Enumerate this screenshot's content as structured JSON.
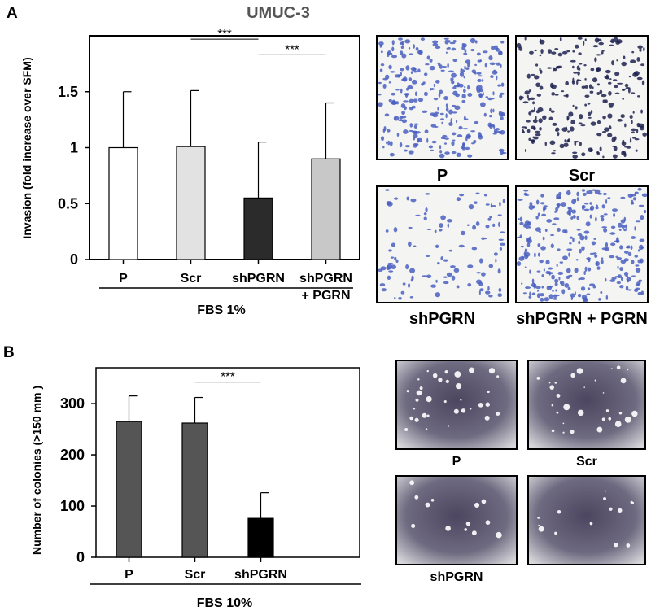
{
  "figure": {
    "title": "UMUC-3",
    "panel_a_letter": "A",
    "panel_b_letter": "B"
  },
  "chart_data": [
    {
      "type": "bar",
      "panel": "A",
      "ylabel": "Invasion (fold increase over SFM)",
      "xlabel": "FBS 1%",
      "categories": [
        "P",
        "Scr",
        "shPGRN",
        "shPGRN\n+ PGRN"
      ],
      "values": [
        1.0,
        1.01,
        0.55,
        0.9
      ],
      "errors": [
        0.5,
        0.5,
        0.5,
        0.5
      ],
      "bar_colors": [
        "#ffffff",
        "#e2e2e2",
        "#2b2b2b",
        "#c8c8c8"
      ],
      "yticks": [
        0,
        0.5,
        1,
        1.5
      ],
      "ytick_labels": [
        "0",
        "0.5",
        "1",
        "1.5"
      ],
      "ylim": [
        0,
        2.0
      ],
      "significance": [
        {
          "from": 1,
          "to": 2,
          "label": "***",
          "y": 1.97
        },
        {
          "from": 2,
          "to": 3,
          "label": "***",
          "y": 1.83
        }
      ]
    },
    {
      "type": "bar",
      "panel": "B",
      "ylabel": "Number of colonies (>150 mm )",
      "xlabel": "FBS 10%",
      "categories": [
        "P",
        "Scr",
        "shPGRN"
      ],
      "values": [
        265,
        262,
        76
      ],
      "errors": [
        50,
        50,
        50
      ],
      "bar_colors": [
        "#555555",
        "#555555",
        "#000000"
      ],
      "yticks": [
        0,
        100,
        200,
        300
      ],
      "ytick_labels": [
        "0",
        "100",
        "200",
        "300"
      ],
      "ylim": [
        0,
        370
      ],
      "xslots": 4,
      "significance": [
        {
          "from": 1,
          "to": 2,
          "label": "***",
          "y": 342
        }
      ]
    }
  ],
  "micrographs": {
    "invasion": {
      "labels": [
        "P",
        "Scr",
        "shPGRN",
        "shPGRN + PGRN"
      ],
      "densities": [
        0.55,
        0.45,
        0.22,
        0.55
      ],
      "colors": [
        "#4a5fc1",
        "#1e2250",
        "#4a5fc1",
        "#4a5fc1"
      ]
    },
    "colonies": {
      "labels": [
        "P",
        "Scr",
        "shPGRN",
        ""
      ],
      "spot_counts": [
        34,
        30,
        14,
        14
      ]
    }
  }
}
